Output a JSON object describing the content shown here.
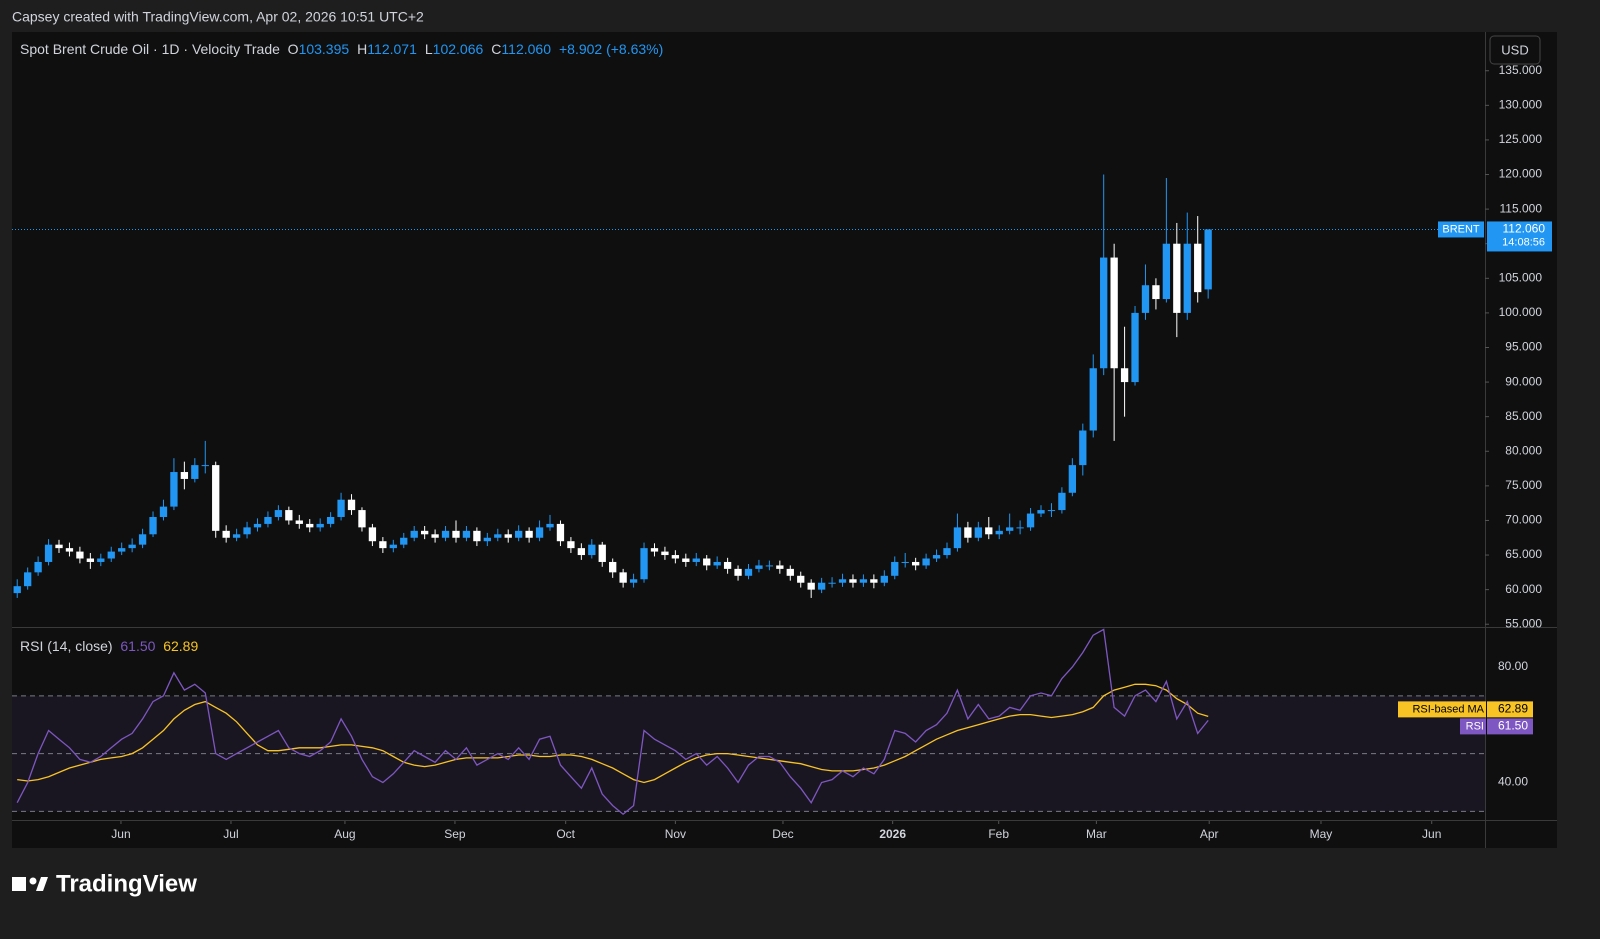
{
  "credit": "Capsey created with TradingView.com, Apr 02, 2026 10:51 UTC+2",
  "brand": "TradingView",
  "chart_data": [
    {
      "type": "candlestick",
      "title": "Spot Brent Crude Oil · 1D · Velocity Trade",
      "currency": "USD",
      "legend": {
        "o": "O",
        "h": "H",
        "l": "L",
        "c": "C",
        "open": 103.395,
        "high": 112.071,
        "low": 102.066,
        "close": {
          "value": 112.06,
          "label": "112.060"
        },
        "change": "+8.902 (+8.63%)"
      },
      "open": [
        59.5,
        60.5,
        62.5,
        64,
        66.5,
        66,
        65.5,
        64.5,
        64,
        64.5,
        65.5,
        66,
        66.5,
        68,
        70.5,
        72,
        77,
        76,
        78,
        78,
        68.5,
        67.5,
        68,
        69,
        69.5,
        70.5,
        71.5,
        70,
        69.5,
        69,
        69.5,
        70.5,
        73,
        71.5,
        69,
        67,
        66,
        66.5,
        67.5,
        68.5,
        68,
        67.5,
        68.5,
        67.5,
        68.5,
        67,
        67.5,
        68,
        67.5,
        68.5,
        67.5,
        69,
        69.5,
        67,
        66,
        65,
        66.5,
        64,
        62.5,
        61,
        61.5,
        66,
        65.5,
        65,
        64.5,
        64,
        64.5,
        63.5,
        64,
        63,
        62,
        63,
        63.5,
        63.5,
        63,
        62,
        61,
        60,
        61,
        61,
        61.5,
        61,
        61.5,
        61,
        62,
        64,
        64,
        63.5,
        64.5,
        65,
        66,
        69,
        67.5,
        69,
        68,
        68.5,
        69,
        69,
        71,
        71.5,
        71.5,
        74,
        78,
        83,
        92,
        108,
        92,
        90,
        100,
        104,
        102,
        110,
        100,
        110,
        103.395
      ],
      "high": [
        61.5,
        63.2,
        64.8,
        67.3,
        67.2,
        66.8,
        66.2,
        65.3,
        65.2,
        66.2,
        66.8,
        67.4,
        68.8,
        71.3,
        73,
        79,
        78.5,
        79,
        81.5,
        78.5,
        69.3,
        68.8,
        69.8,
        70.3,
        71.3,
        72.2,
        72,
        70.8,
        70.2,
        70.3,
        71.2,
        74,
        73.8,
        71.9,
        69.5,
        67.6,
        67.2,
        68.2,
        69.2,
        69.2,
        68.7,
        69.2,
        70,
        69.2,
        69,
        68.2,
        68.8,
        68.7,
        69.3,
        69,
        70,
        70.8,
        70,
        67.6,
        66.7,
        67.3,
        66.9,
        64.5,
        63,
        62.3,
        66.8,
        66.7,
        66.2,
        65.7,
        65.2,
        65.3,
        65,
        64.8,
        64.6,
        63.5,
        63.7,
        64.3,
        64.2,
        64.2,
        63.5,
        62.6,
        61.5,
        61.7,
        61.8,
        62.3,
        62.2,
        62.2,
        62.2,
        62.8,
        64.8,
        65.3,
        64.6,
        65.2,
        65.8,
        66.8,
        71,
        69.8,
        69.8,
        70.5,
        69.3,
        71,
        70,
        71.8,
        72.2,
        72.5,
        74.8,
        79,
        84,
        94,
        120,
        110,
        98,
        101,
        107,
        105,
        119.5,
        113,
        114.5,
        114,
        112.071
      ],
      "low": [
        58.8,
        60,
        62,
        63.5,
        65.3,
        64.8,
        63.8,
        63,
        63.4,
        64,
        65,
        65.4,
        66,
        67.6,
        70,
        71.5,
        74.5,
        75.5,
        76.8,
        67.5,
        66.8,
        67,
        67.4,
        68.4,
        69,
        70,
        69.4,
        68.8,
        68.3,
        68.4,
        69,
        70,
        70.8,
        68.4,
        66.3,
        65.3,
        65.4,
        66,
        67,
        67.3,
        66.8,
        67,
        66.8,
        67,
        66.3,
        66.3,
        67,
        66.8,
        67,
        66.8,
        67,
        68.5,
        66.3,
        65.3,
        64.3,
        64.5,
        63.3,
        61.7,
        60.3,
        60.3,
        61,
        64.8,
        64.3,
        63.8,
        63.3,
        63.4,
        62.8,
        63,
        62.3,
        61.3,
        61.5,
        62.5,
        62.8,
        62.3,
        61.3,
        60.3,
        58.8,
        59.5,
        60.3,
        60.4,
        60.3,
        60.4,
        60.2,
        60.5,
        61.5,
        63.2,
        62.8,
        63,
        64,
        64.5,
        65.5,
        66.8,
        67,
        67.3,
        67.3,
        68,
        68,
        68.5,
        70.5,
        70.5,
        71,
        73.5,
        76.5,
        82,
        91,
        81.5,
        85,
        89.5,
        99,
        100.5,
        101.5,
        96.5,
        99,
        101.5,
        102.066
      ],
      "close": [
        60.5,
        62.5,
        64,
        66.5,
        66,
        65.5,
        64.5,
        64,
        64.5,
        65.5,
        66,
        66.5,
        68,
        70.5,
        72,
        77,
        76,
        78,
        78,
        68.5,
        67.5,
        68,
        69,
        69.5,
        70.5,
        71.5,
        70,
        69.5,
        69,
        69.5,
        70.5,
        73,
        71.5,
        69,
        67,
        66,
        66.5,
        67.5,
        68.5,
        68,
        67.5,
        68.5,
        67.5,
        68.5,
        67,
        67.5,
        68,
        67.5,
        68.5,
        67.5,
        69,
        69.5,
        67,
        66,
        65,
        66.5,
        64,
        62.5,
        61,
        61.5,
        66,
        65.5,
        65,
        64.5,
        64,
        64.5,
        63.5,
        64,
        63,
        62,
        63,
        63.5,
        63.5,
        63,
        62,
        61,
        60,
        61,
        61,
        61.5,
        61,
        61.5,
        61,
        62,
        64,
        64,
        63.5,
        64.5,
        65,
        66,
        69,
        67.5,
        69,
        68,
        68.5,
        69,
        69,
        71,
        71.5,
        71.5,
        74,
        78,
        83,
        92,
        108,
        92,
        90,
        100,
        104,
        102,
        110,
        100,
        110,
        103,
        112.06
      ],
      "up_color": "#2196f3",
      "down_color": "#ffffff",
      "xlim": [
        -0.5,
        140.5
      ],
      "xticks": [
        {
          "value": 9.93,
          "label": "Jun"
        },
        {
          "value": 20.46,
          "label": "Jul"
        },
        {
          "value": 31.37,
          "label": "Aug"
        },
        {
          "value": 41.9,
          "label": "Sep"
        },
        {
          "value": 52.5,
          "label": "Oct"
        },
        {
          "value": 63,
          "label": "Nov"
        },
        {
          "value": 73.3,
          "label": "Dec"
        },
        {
          "value": 83.8,
          "label": "2026"
        },
        {
          "value": 93.95,
          "label": "Feb"
        },
        {
          "value": 103.3,
          "label": "Mar"
        },
        {
          "value": 114.1,
          "label": "Apr"
        },
        {
          "value": 124.8,
          "label": "May"
        },
        {
          "value": 135.4,
          "label": "Jun"
        }
      ],
      "ylim": [
        54.6,
        140.6
      ],
      "yticks": [
        {
          "value": 55,
          "label": "55.000"
        },
        {
          "value": 60,
          "label": "60.000"
        },
        {
          "value": 65,
          "label": "65.000"
        },
        {
          "value": 70,
          "label": "70.000"
        },
        {
          "value": 75,
          "label": "75.000"
        },
        {
          "value": 80,
          "label": "80.000"
        },
        {
          "value": 85,
          "label": "85.000"
        },
        {
          "value": 90,
          "label": "90.000"
        },
        {
          "value": 95,
          "label": "95.000"
        },
        {
          "value": 100,
          "label": "100.000"
        },
        {
          "value": 105,
          "label": "105.000"
        },
        {
          "value": 110,
          "label": "110.000"
        },
        {
          "value": 115,
          "label": "115.000"
        },
        {
          "value": 120,
          "label": "120.000"
        },
        {
          "value": 125,
          "label": "125.000"
        },
        {
          "value": 130,
          "label": "130.000"
        },
        {
          "value": 135,
          "label": "135.000"
        }
      ],
      "last_price": {
        "symbol": "BRENT",
        "value": 112.06,
        "label": "112.060",
        "countdown": "14:08:56"
      }
    },
    {
      "type": "line",
      "title": "RSI (14, close)",
      "series": [
        {
          "name": "RSI",
          "color": "#7e57c2",
          "last": {
            "value": 61.5,
            "label": "61.50"
          },
          "values": [
            33,
            40,
            50,
            58,
            55,
            52,
            48,
            47,
            49,
            52,
            55,
            57,
            62,
            68,
            70,
            78,
            72,
            74,
            71,
            50,
            48,
            50,
            52,
            54,
            56,
            58,
            52,
            50,
            49,
            51,
            54,
            62,
            56,
            48,
            42,
            40,
            43,
            47,
            51,
            49,
            47,
            51,
            48,
            52,
            46,
            48,
            50,
            48,
            52,
            48,
            55,
            56,
            46,
            42,
            38,
            45,
            36,
            32,
            29,
            32,
            58,
            55,
            53,
            51,
            48,
            50,
            46,
            49,
            45,
            40,
            46,
            49,
            49,
            47,
            42,
            38,
            33,
            40,
            41,
            44,
            42,
            45,
            43,
            48,
            58,
            57,
            54,
            58,
            60,
            64,
            72,
            62,
            67,
            62,
            63,
            66,
            65,
            70,
            71,
            70,
            76,
            80,
            85,
            91,
            93,
            66,
            63,
            70,
            72,
            68,
            75,
            62,
            68,
            57,
            61.5
          ]
        },
        {
          "name": "RSI-based MA",
          "color": "#f7c325",
          "last": 62.89,
          "values": [
            41,
            40.5,
            41,
            42,
            43.5,
            45,
            46,
            47,
            48,
            48.5,
            49,
            50,
            52,
            55,
            58,
            62,
            65,
            67,
            68,
            66,
            64,
            61,
            57,
            53,
            51,
            51,
            51.5,
            52,
            52,
            52,
            52.5,
            53,
            53,
            52.5,
            52,
            51,
            49,
            47,
            46,
            45.5,
            46,
            47,
            48,
            48.5,
            48.5,
            48.5,
            48.5,
            49,
            49.5,
            49.5,
            49,
            49,
            49.5,
            49.5,
            49,
            48,
            46.5,
            45,
            43,
            41,
            40,
            41,
            43,
            45,
            47,
            48.5,
            49.5,
            50,
            50,
            49.5,
            49,
            48.5,
            48,
            47.5,
            47,
            46.5,
            45.5,
            44.5,
            44,
            44,
            44,
            44.5,
            45,
            46,
            47.5,
            49,
            51,
            53,
            55,
            56.5,
            58,
            59,
            60,
            61,
            62,
            63,
            63.5,
            63.5,
            63,
            62.5,
            63,
            63.5,
            64.5,
            66,
            70,
            72,
            73,
            74,
            74,
            73.5,
            72,
            69,
            67,
            64,
            62.89
          ]
        }
      ],
      "ylim": [
        27,
        93.5
      ],
      "yticks": [
        {
          "value": 40,
          "label": "40.00"
        },
        {
          "value": 80,
          "label": "80.00"
        }
      ],
      "bands": [
        30,
        50,
        70
      ]
    }
  ]
}
